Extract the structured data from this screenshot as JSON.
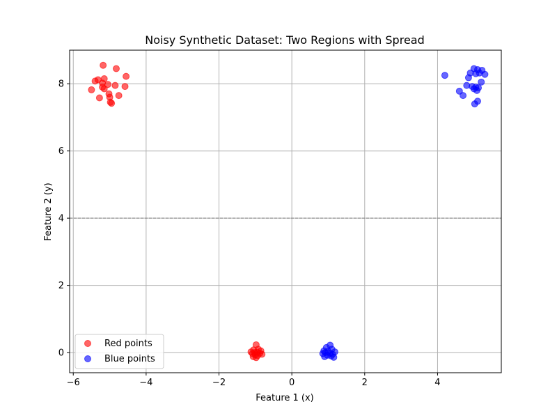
{
  "chart_data": {
    "type": "scatter",
    "title": "Noisy Synthetic Dataset: Two Regions with Spread",
    "xlabel": "Feature 1 (x)",
    "ylabel": "Feature 2 (y)",
    "xlim": [
      -6.1,
      5.75
    ],
    "ylim": [
      -0.6,
      9.0
    ],
    "xticks": [
      -6,
      -4,
      -2,
      0,
      2,
      4
    ],
    "yticks": [
      0,
      2,
      4,
      6,
      8
    ],
    "grid": true,
    "reference_line": {
      "y": 4,
      "style": "dashed",
      "color": "#808080"
    },
    "legend_position": "lower-left",
    "series": [
      {
        "name": "Red points",
        "color": "#ff0000",
        "points": [
          [
            -5.18,
            8.55
          ],
          [
            -4.82,
            8.45
          ],
          [
            -4.55,
            8.22
          ],
          [
            -5.15,
            8.15
          ],
          [
            -5.32,
            8.12
          ],
          [
            -5.4,
            8.08
          ],
          [
            -5.2,
            8.02
          ],
          [
            -5.05,
            7.98
          ],
          [
            -4.85,
            7.95
          ],
          [
            -4.58,
            7.92
          ],
          [
            -5.2,
            7.9
          ],
          [
            -5.15,
            7.85
          ],
          [
            -5.5,
            7.82
          ],
          [
            -5.02,
            7.7
          ],
          [
            -4.75,
            7.65
          ],
          [
            -5.0,
            7.6
          ],
          [
            -5.28,
            7.58
          ],
          [
            -4.98,
            7.45
          ],
          [
            -4.95,
            7.42
          ],
          [
            -0.98,
            0.23
          ],
          [
            -0.92,
            0.1
          ],
          [
            -1.05,
            0.08
          ],
          [
            -0.85,
            0.05
          ],
          [
            -1.12,
            0.02
          ],
          [
            -0.95,
            0.01
          ],
          [
            -1.02,
            0.0
          ],
          [
            -0.88,
            -0.02
          ],
          [
            -1.08,
            -0.03
          ],
          [
            -0.82,
            -0.05
          ],
          [
            -1.0,
            -0.07
          ],
          [
            -0.94,
            -0.09
          ],
          [
            -1.06,
            -0.12
          ],
          [
            -0.98,
            -0.15
          ]
        ]
      },
      {
        "name": "Blue points",
        "color": "#0000ff",
        "points": [
          [
            5.0,
            8.45
          ],
          [
            5.1,
            8.42
          ],
          [
            5.22,
            8.4
          ],
          [
            4.9,
            8.32
          ],
          [
            5.05,
            8.3
          ],
          [
            5.15,
            8.32
          ],
          [
            5.3,
            8.28
          ],
          [
            4.2,
            8.25
          ],
          [
            4.85,
            8.18
          ],
          [
            5.2,
            8.05
          ],
          [
            4.8,
            7.95
          ],
          [
            4.95,
            7.92
          ],
          [
            5.05,
            7.9
          ],
          [
            5.12,
            7.88
          ],
          [
            5.0,
            7.85
          ],
          [
            5.08,
            7.8
          ],
          [
            4.6,
            7.78
          ],
          [
            4.7,
            7.65
          ],
          [
            5.1,
            7.48
          ],
          [
            5.02,
            7.4
          ],
          [
            1.05,
            0.22
          ],
          [
            0.95,
            0.15
          ],
          [
            1.1,
            0.1
          ],
          [
            0.88,
            0.05
          ],
          [
            1.0,
            0.04
          ],
          [
            1.18,
            0.02
          ],
          [
            0.92,
            0.0
          ],
          [
            1.05,
            -0.02
          ],
          [
            0.85,
            -0.03
          ],
          [
            1.12,
            -0.05
          ],
          [
            0.98,
            -0.08
          ],
          [
            1.08,
            -0.1
          ],
          [
            0.9,
            -0.12
          ],
          [
            1.15,
            -0.14
          ]
        ]
      }
    ]
  }
}
